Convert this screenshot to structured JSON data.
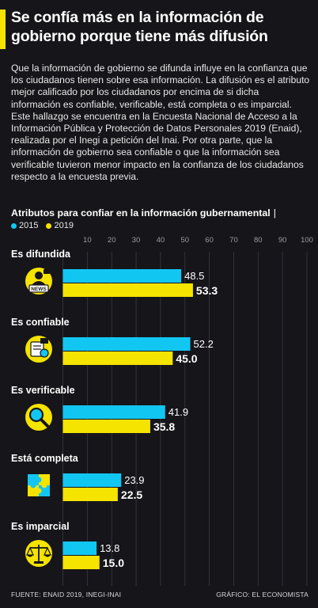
{
  "header": {
    "title": "Se confía más en la información de gobierno porque tiene más difusión"
  },
  "intro": "Que la información de gobierno se difunda influye en la confianza que los ciudadanos tienen sobre esa información. La difusión es el atributo mejor calificado por los ciudadanos por encima de si dicha información es confiable, verificable, está completa o es imparcial. Este hallazgo se encuentra en la Encuesta Nacional de Acceso a la Información Pública y Protección de Datos Personales 2019 (Enaid), realizada por el Inegi a petición del Inai. Por otra parte, que la información de gobierno sea confiable o que la información sea verificable tuvieron menor impacto en la confianza de los ciudadanos respecto a la encuesta previa.",
  "chart_data": {
    "type": "bar",
    "orientation": "horizontal",
    "title": "Atributos para confiar en la información gubernamental",
    "categories": [
      "Es difundida",
      "Es confiable",
      "Es verificable",
      "Está completa",
      "Es imparcial"
    ],
    "series": [
      {
        "name": "2015",
        "values": [
          48.5,
          52.2,
          41.9,
          23.9,
          13.8
        ],
        "color": "#12c6f2"
      },
      {
        "name": "2019",
        "values": [
          53.3,
          45.0,
          35.8,
          22.5,
          15.0
        ],
        "color": "#f5e300"
      }
    ],
    "value_labels": {
      "2015": [
        "48.5",
        "52.2",
        "41.9",
        "23.9",
        "13.8"
      ],
      "2019": [
        "53.3",
        "45.0",
        "35.8",
        "22.5",
        "15.0"
      ]
    },
    "xlim": [
      0,
      100
    ],
    "xticks": [
      10,
      20,
      30,
      40,
      50,
      60,
      70,
      80,
      90,
      100
    ],
    "legend_position": "top-left",
    "grid": true,
    "icons": [
      "news-icon",
      "trust-certificate-icon",
      "magnifier-icon",
      "puzzle-icon",
      "scales-icon"
    ]
  },
  "footer": {
    "source": "FUENTE: ENAID 2019, INEGI-INAI",
    "credit": "GRÁFICO: EL ECONOMISTA"
  }
}
